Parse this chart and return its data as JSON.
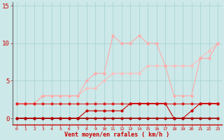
{
  "x": [
    0,
    1,
    2,
    3,
    4,
    5,
    6,
    7,
    8,
    9,
    10,
    11,
    12,
    13,
    14,
    15,
    16,
    17,
    18,
    19,
    20,
    21,
    22,
    23
  ],
  "line_darkred_flat": [
    2,
    2,
    2,
    2,
    2,
    2,
    2,
    2,
    2,
    2,
    2,
    2,
    2,
    2,
    2,
    2,
    2,
    2,
    2,
    2,
    2,
    2,
    2,
    2
  ],
  "line_darkred_low": [
    0,
    0,
    0,
    0,
    0,
    0,
    0,
    0,
    1,
    1,
    1,
    1,
    1,
    2,
    2,
    2,
    2,
    2,
    0,
    0,
    1,
    2,
    2,
    2
  ],
  "line_darkred_zero": [
    0,
    0,
    0,
    0,
    0,
    0,
    0,
    0,
    0,
    0,
    0,
    0,
    0,
    0,
    0,
    0,
    0,
    0,
    0,
    0,
    0,
    0,
    0,
    0
  ],
  "line_pink_high": [
    2,
    2,
    2,
    3,
    3,
    3,
    3,
    3,
    5,
    6,
    6,
    11,
    10,
    10,
    11,
    10,
    10,
    7,
    3,
    3,
    3,
    8,
    8,
    10
  ],
  "line_pink_diag": [
    2,
    2,
    2,
    3,
    3,
    3,
    3,
    3,
    4,
    4,
    5,
    6,
    6,
    6,
    6,
    7,
    7,
    7,
    7,
    7,
    7,
    8,
    9,
    10
  ],
  "color_darkred_flat": "#dd2222",
  "color_darkred_low": "#cc0000",
  "color_darkred_zero": "#aa0000",
  "color_pink_high": "#ffaaaa",
  "color_pink_diag": "#ffbbbb",
  "bg_color": "#cce8e8",
  "grid_color": "#aad4d4",
  "xlabel": "Vent moyen/en rafales ( km/h )",
  "xlabel_color": "#cc0000",
  "tick_color": "#cc0000",
  "yticks": [
    0,
    5,
    10,
    15
  ],
  "ylim": [
    -0.8,
    15.5
  ],
  "xlim": [
    -0.5,
    23.5
  ]
}
